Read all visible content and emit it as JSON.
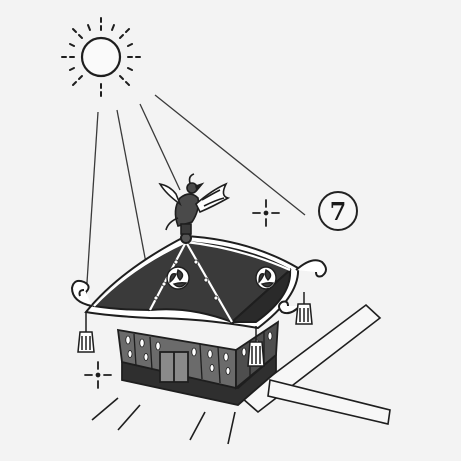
{
  "figure": {
    "step_number": "7",
    "subject": "mikoshi-portable-shrine-in-sunlight"
  },
  "colors": {
    "background": "#f3f3f3",
    "ink": "#1e1e1e",
    "roof_fill": "#3a3a3a",
    "body_fill": "#6b6b6b",
    "highlight": "#ffffff"
  },
  "icons": [
    "sun-icon",
    "sparkle-icon",
    "phoenix-ornament-icon",
    "tomoe-crest-icon",
    "tassel-icon"
  ]
}
